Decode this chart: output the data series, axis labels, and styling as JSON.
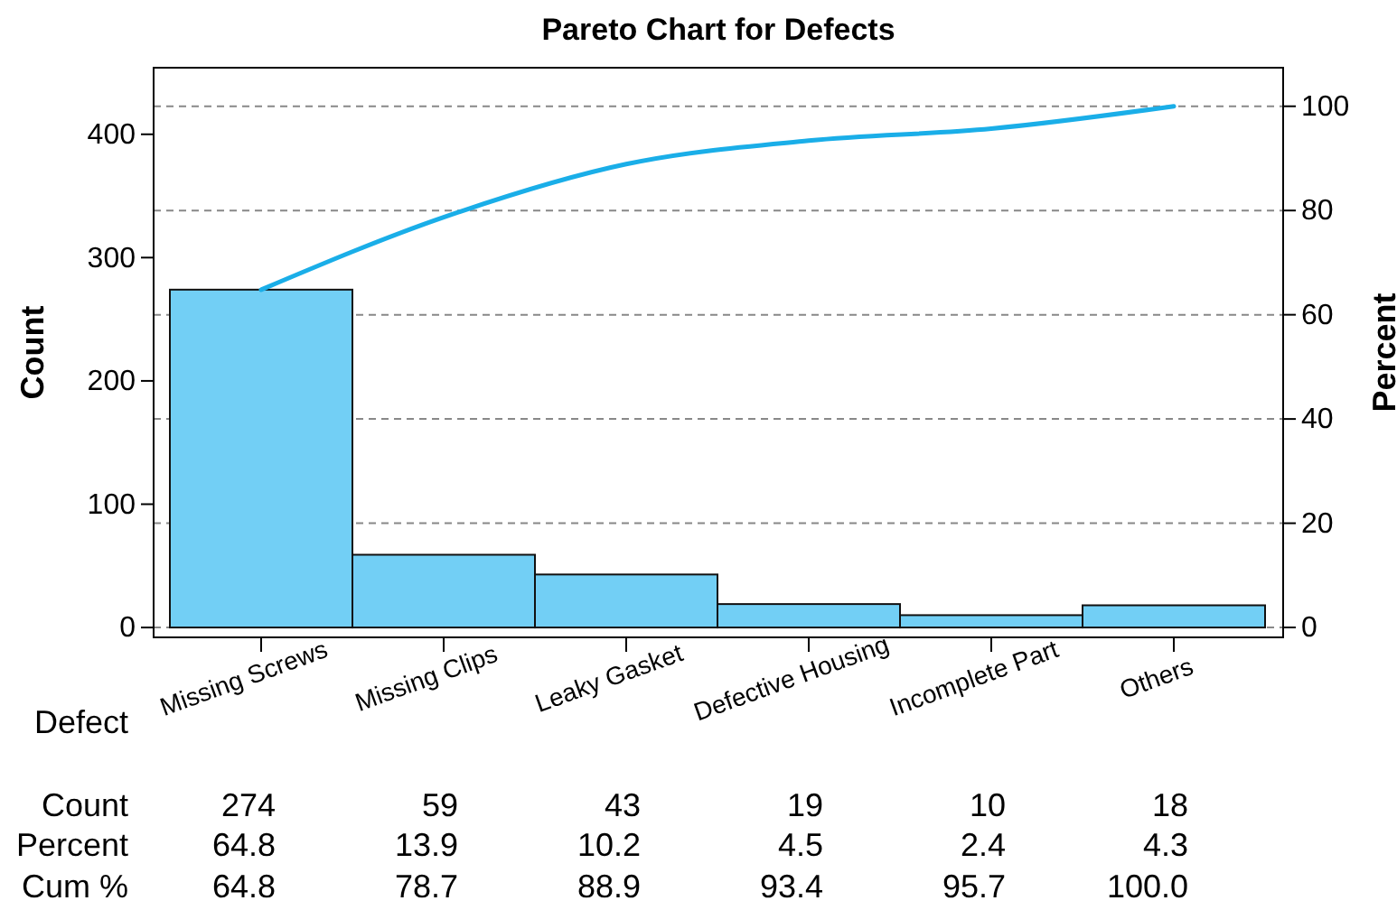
{
  "chart_data": {
    "type": "bar",
    "title": "Pareto Chart for Defects",
    "xlabel": "Defect",
    "ylabel": "Count",
    "y2label": "Percent",
    "categories": [
      "Missing Screws",
      "Missing Clips",
      "Leaky Gasket",
      "Defective Housing",
      "Incomplete Part",
      "Others"
    ],
    "series": [
      {
        "color": "#72cff5",
        "values": [
          274,
          59,
          43,
          19,
          10,
          18
        ],
        "value_labels": [
          "274",
          "59",
          "43",
          "19",
          "10",
          "18"
        ]
      },
      {
        "type": "line",
        "axis": "y2",
        "color": "#1aaee8",
        "values": [
          64.8,
          78.7,
          88.9,
          93.4,
          95.7,
          100.0
        ],
        "value_labels": [
          "64.8",
          "78.7",
          "88.9",
          "93.4",
          "95.7",
          "100.0"
        ]
      }
    ],
    "annotations": [
      "Count",
      "Percent",
      "Cum %",
      "64.8",
      "13.9",
      "10.2",
      "4.5",
      "2.4",
      "4.3"
    ],
    "ylim": [
      -8,
      454
    ],
    "yticks": [
      0,
      100,
      200,
      300,
      400
    ],
    "y2lim": [
      -1.9,
      107.4
    ],
    "y2ticks": [
      0,
      20,
      40,
      60,
      80,
      100
    ],
    "grid": "y2",
    "line_style": "solid"
  }
}
